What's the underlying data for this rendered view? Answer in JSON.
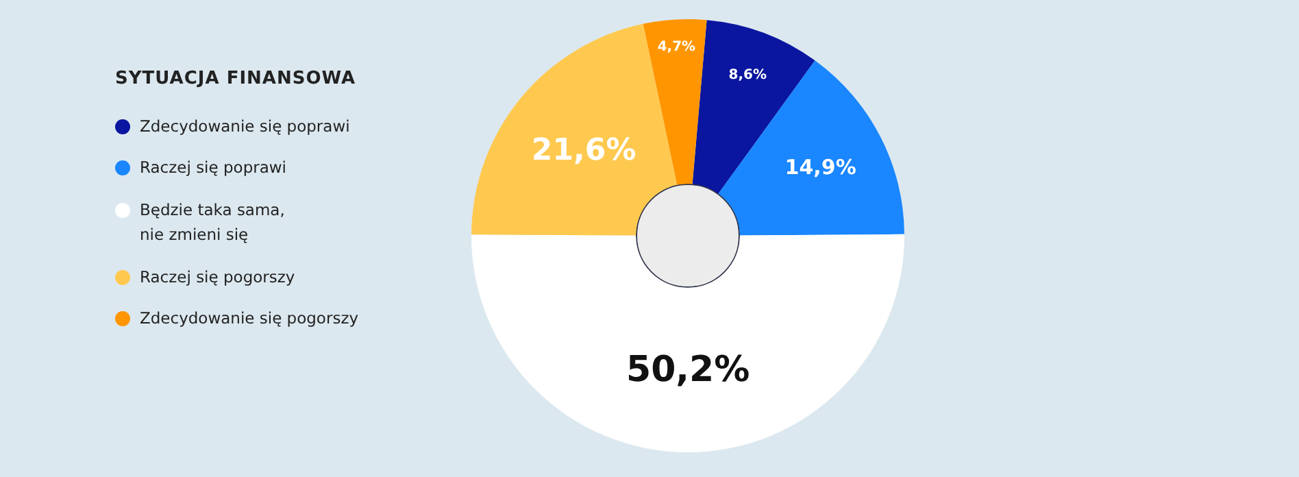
{
  "chart_data": {
    "type": "donut",
    "legend_title": "SYTUACJA FINANSOWA",
    "categories": [
      "Zdecydowanie się poprawi",
      "Raczej się poprawi",
      "Będzie taka sama,\nnie zmieni się",
      "Raczej się pogorszy",
      "Zdecydowanie się pogorszy"
    ],
    "values": [
      8.6,
      14.9,
      50.2,
      21.6,
      4.7
    ],
    "colors": [
      "#0a16a0",
      "#1a86ff",
      "#ffffff",
      "#ffc94f",
      "#ff9500"
    ],
    "value_labels": [
      "8,6%",
      "14,9%",
      "50,2%",
      "21,6%",
      "4,7%"
    ],
    "legend": "left"
  }
}
